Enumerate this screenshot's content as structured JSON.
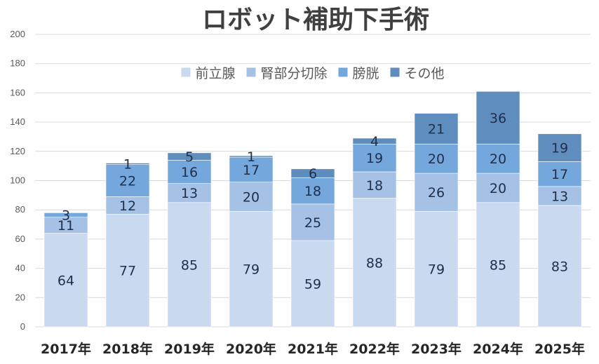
{
  "chart_data": {
    "type": "bar",
    "stacked": true,
    "title": "ロボット補助下手術",
    "xlabel": "",
    "ylabel": "",
    "categories": [
      "2017年",
      "2018年",
      "2019年",
      "2020年",
      "2021年",
      "2022年",
      "2023年",
      "2024年",
      "2025年"
    ],
    "series": [
      {
        "name": "前立腺",
        "color": "#c9d9ef",
        "values": [
          64,
          77,
          85,
          79,
          59,
          88,
          79,
          85,
          83
        ]
      },
      {
        "name": "腎部分切除",
        "color": "#a6c1e6",
        "values": [
          11,
          12,
          13,
          20,
          25,
          18,
          26,
          20,
          13
        ]
      },
      {
        "name": "膀胱",
        "color": "#74a7dc",
        "values": [
          3,
          22,
          16,
          17,
          18,
          19,
          20,
          20,
          17
        ]
      },
      {
        "name": "その他",
        "color": "#5f8dbe",
        "values": [
          0,
          1,
          5,
          1,
          6,
          4,
          21,
          36,
          19
        ]
      }
    ],
    "ylim": [
      0,
      200
    ],
    "yticks": [
      0,
      20,
      40,
      60,
      80,
      100,
      120,
      140,
      160,
      180,
      200
    ],
    "grid": true,
    "legend_position": "top-center",
    "data_labels": true
  }
}
